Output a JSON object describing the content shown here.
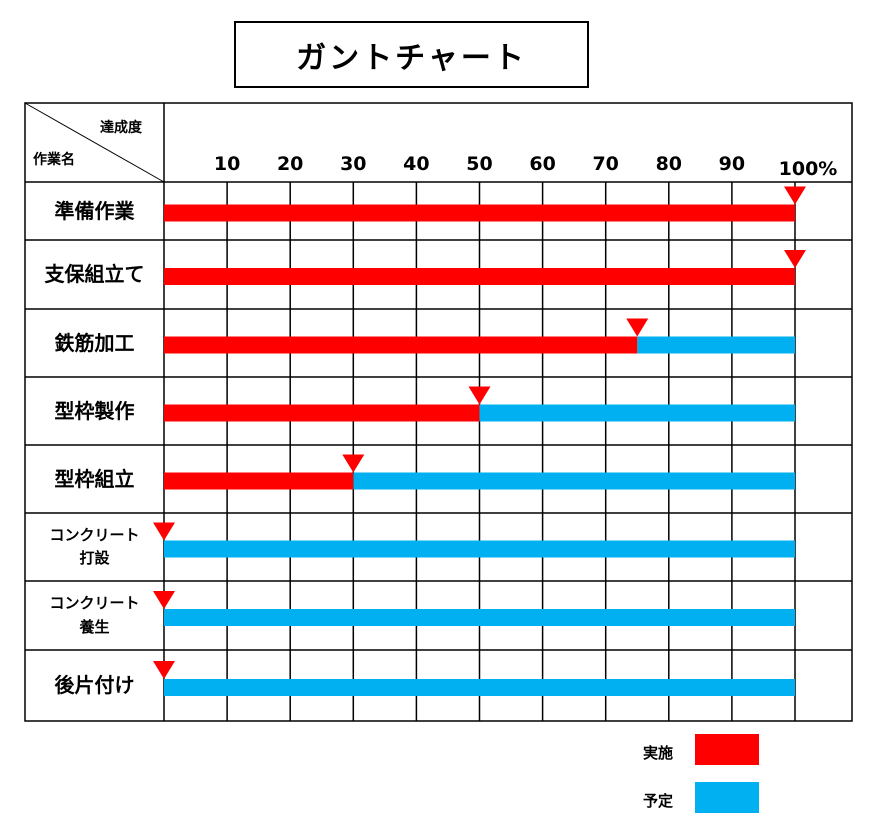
{
  "title": "ガントチャート",
  "corner": {
    "top_label": "達成度",
    "bottom_label": "作業名"
  },
  "colors": {
    "actual": "#ff0000",
    "planned": "#00b0f0",
    "grid": "#000000"
  },
  "chart_data": {
    "type": "gantt",
    "title": "ガントチャート",
    "xlabel": "達成度",
    "ylabel": "作業名",
    "xlim": [
      0,
      100
    ],
    "x_ticks": [
      "10",
      "20",
      "30",
      "40",
      "50",
      "60",
      "70",
      "80",
      "90",
      "100%"
    ],
    "x_tick_values": [
      10,
      20,
      30,
      40,
      50,
      60,
      70,
      80,
      90,
      100
    ],
    "series": [
      {
        "name": "実施",
        "color": "#ff0000"
      },
      {
        "name": "予定",
        "color": "#00b0f0"
      }
    ],
    "tasks": [
      {
        "name": "準備作業",
        "lines": [
          "準備作業"
        ],
        "progress": 100,
        "planned": 100
      },
      {
        "name": "支保組立て",
        "lines": [
          "支保組立て"
        ],
        "progress": 100,
        "planned": 100
      },
      {
        "name": "鉄筋加工",
        "lines": [
          "鉄筋加工"
        ],
        "progress": 75,
        "planned": 100
      },
      {
        "name": "型枠製作",
        "lines": [
          "型枠製作"
        ],
        "progress": 50,
        "planned": 100
      },
      {
        "name": "型枠組立",
        "lines": [
          "型枠組立"
        ],
        "progress": 30,
        "planned": 100
      },
      {
        "name": "コンクリート打設",
        "lines": [
          "コンクリート",
          "打設"
        ],
        "progress": 0,
        "planned": 100
      },
      {
        "name": "コンクリート養生",
        "lines": [
          "コンクリート",
          "養生"
        ],
        "progress": 0,
        "planned": 100
      },
      {
        "name": "後片付け",
        "lines": [
          "後片付け"
        ],
        "progress": 0,
        "planned": 100
      }
    ],
    "grid": true,
    "legend_position": "bottom-right"
  },
  "legend": [
    {
      "label": "実施",
      "color": "#ff0000"
    },
    {
      "label": "予定",
      "color": "#00b0f0"
    }
  ]
}
